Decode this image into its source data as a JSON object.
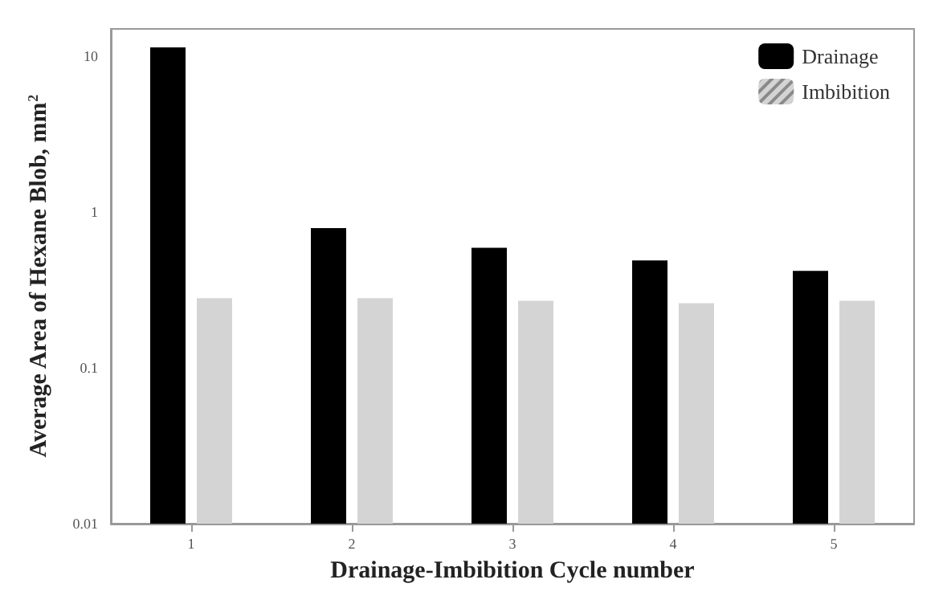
{
  "chart_data": {
    "type": "bar",
    "xlabel": "Drainage-Imbibition Cycle number",
    "ylabel": "Average Area of Hexane Blob, mm$^{2}$",
    "categories": [
      "1",
      "2",
      "3",
      "4",
      "5"
    ],
    "log": true,
    "ylim": [
      0.01,
      15
    ],
    "yticks": [
      0.01,
      0.1,
      1,
      10
    ],
    "grid": false,
    "legend": "top right",
    "series": [
      {
        "name": "Drainage",
        "color": "#000000",
        "values": [
          11.4,
          0.79,
          0.59,
          0.49,
          0.42
        ]
      },
      {
        "name": "Imbibition",
        "color": "#d4d4d4",
        "values": [
          0.28,
          0.28,
          0.27,
          0.26,
          0.27
        ]
      }
    ]
  }
}
